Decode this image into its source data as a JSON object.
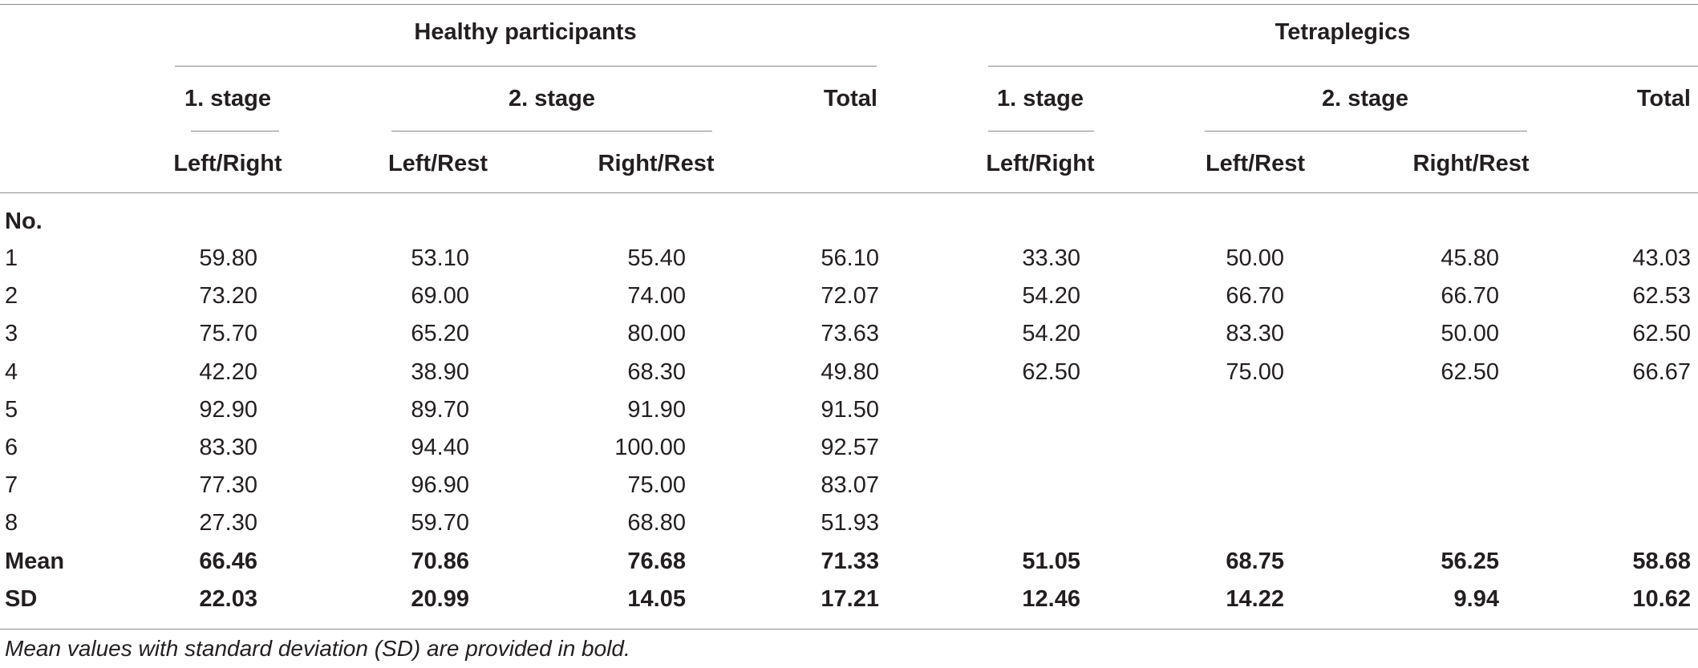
{
  "groups": [
    {
      "title": "Healthy participants",
      "stage1": "1. stage",
      "stage2": "2. stage",
      "total": "Total",
      "sub": [
        "Left/Right",
        "Left/Rest",
        "Right/Rest"
      ]
    },
    {
      "title": "Tetraplegics",
      "stage1": "1. stage",
      "stage2": "2. stage",
      "total": "Total",
      "sub": [
        "Left/Right",
        "Left/Rest",
        "Right/Rest"
      ]
    }
  ],
  "no_label": "No.",
  "rows": [
    [
      "1",
      "59.80",
      "53.10",
      "55.40",
      "56.10",
      "33.30",
      "50.00",
      "45.80",
      "43.03"
    ],
    [
      "2",
      "73.20",
      "69.00",
      "74.00",
      "72.07",
      "54.20",
      "66.70",
      "66.70",
      "62.53"
    ],
    [
      "3",
      "75.70",
      "65.20",
      "80.00",
      "73.63",
      "54.20",
      "83.30",
      "50.00",
      "62.50"
    ],
    [
      "4",
      "42.20",
      "38.90",
      "68.30",
      "49.80",
      "62.50",
      "75.00",
      "62.50",
      "66.67"
    ],
    [
      "5",
      "92.90",
      "89.70",
      "91.90",
      "91.50",
      "",
      "",
      "",
      ""
    ],
    [
      "6",
      "83.30",
      "94.40",
      "100.00",
      "92.57",
      "",
      "",
      "",
      ""
    ],
    [
      "7",
      "77.30",
      "96.90",
      "75.00",
      "83.07",
      "",
      "",
      "",
      ""
    ],
    [
      "8",
      "27.30",
      "59.70",
      "68.80",
      "51.93",
      "",
      "",
      "",
      ""
    ]
  ],
  "summary": [
    [
      "Mean",
      "66.46",
      "70.86",
      "76.68",
      "71.33",
      "51.05",
      "68.75",
      "56.25",
      "58.68"
    ],
    [
      "SD",
      "22.03",
      "20.99",
      "14.05",
      "17.21",
      "12.46",
      "14.22",
      "9.94",
      "10.62"
    ]
  ],
  "footnote": "Mean values with standard deviation (SD) are provided in bold."
}
